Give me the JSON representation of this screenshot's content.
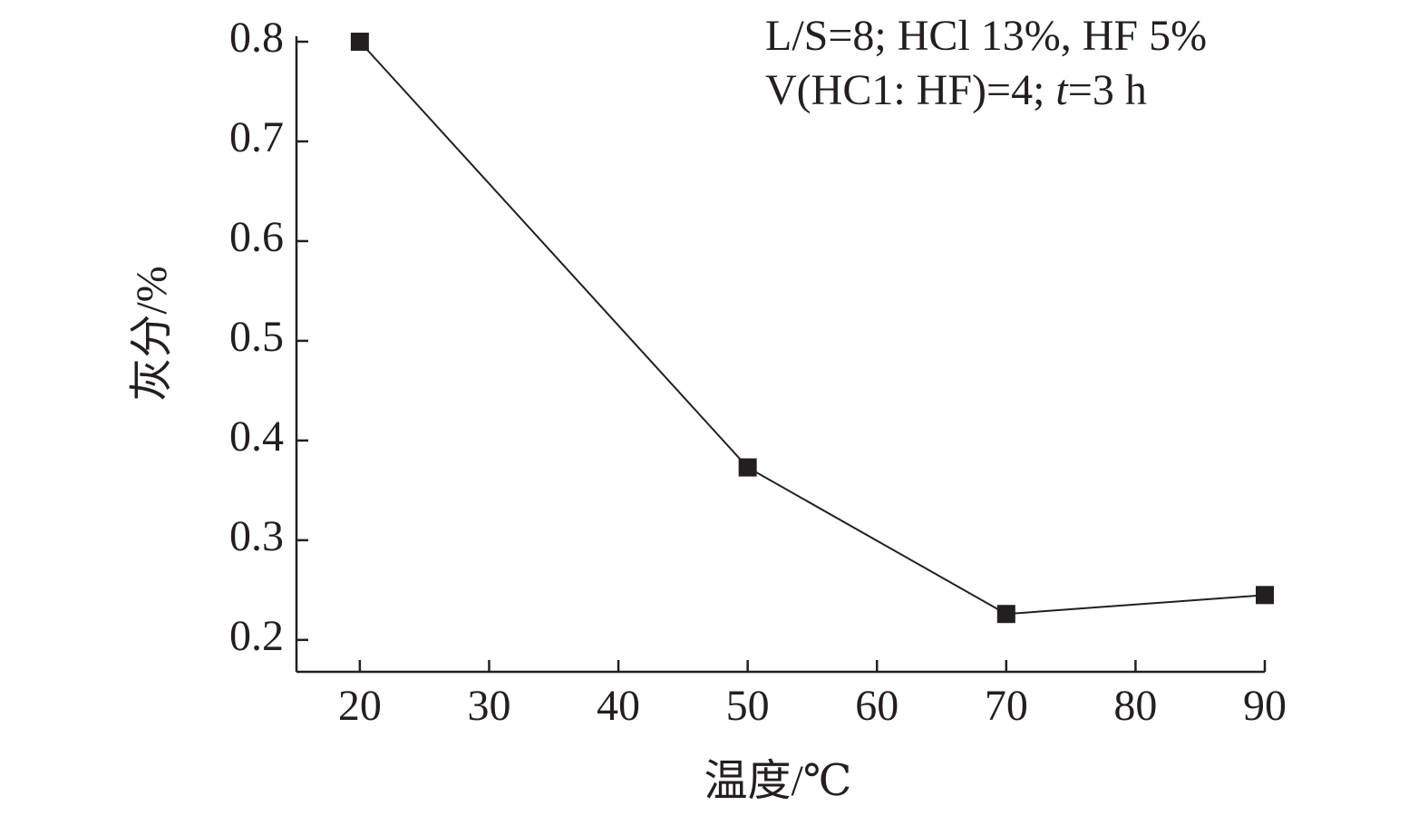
{
  "chart_data": {
    "type": "line",
    "x_label": "温度/℃",
    "y_label": "灰分/%",
    "annotations": [
      [
        "L/S=8; HCl 13%, HF 5%"
      ],
      [
        "V(HC1: HF)=4; ",
        "t",
        "=3 h"
      ]
    ],
    "x": [
      20,
      50,
      70,
      90
    ],
    "series": [
      {
        "color": "#231f20",
        "values": [
          0.8,
          0.373,
          0.226,
          0.245
        ]
      }
    ],
    "xlim": [
      15.1,
      90
    ],
    "xticks": [
      20,
      30,
      40,
      50,
      60,
      70,
      80,
      90
    ],
    "ylim": [
      0.168,
      0.8
    ],
    "yticks": [
      0.2,
      0.3,
      0.4,
      0.5,
      0.6,
      0.7,
      0.8
    ]
  }
}
